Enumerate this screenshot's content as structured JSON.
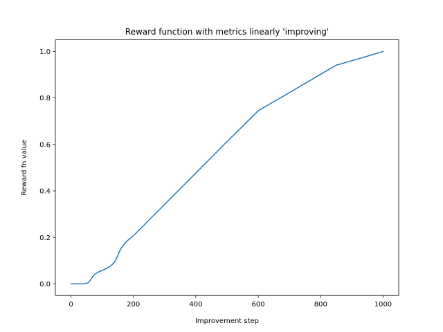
{
  "chart_data": {
    "type": "line",
    "title": "Reward function with metrics linearly 'improving'",
    "xlabel": "Improvement step",
    "ylabel": "Reward fn value",
    "xlim": [
      -50,
      1050
    ],
    "ylim": [
      -0.05,
      1.05
    ],
    "xticks": [
      0,
      200,
      400,
      600,
      800,
      1000
    ],
    "yticks": [
      0.0,
      0.2,
      0.4,
      0.6,
      0.8,
      1.0
    ],
    "xtick_labels": [
      "0",
      "200",
      "400",
      "600",
      "800",
      "1000"
    ],
    "ytick_labels": [
      "0.0",
      "0.2",
      "0.4",
      "0.6",
      "0.8",
      "1.0"
    ],
    "grid": false,
    "series": [
      {
        "color": "#1f77b4",
        "x": [
          0,
          20,
          40,
          50,
          55,
          60,
          65,
          70,
          75,
          80,
          90,
          100,
          110,
          120,
          130,
          140,
          145,
          150,
          155,
          160,
          165,
          170,
          180,
          200,
          300,
          400,
          500,
          600,
          700,
          800,
          850,
          900,
          950,
          1000
        ],
        "y": [
          0.0,
          0.0,
          0.0,
          0.002,
          0.005,
          0.012,
          0.022,
          0.032,
          0.04,
          0.045,
          0.052,
          0.058,
          0.064,
          0.071,
          0.08,
          0.095,
          0.108,
          0.122,
          0.138,
          0.152,
          0.162,
          0.17,
          0.185,
          0.207,
          0.342,
          0.477,
          0.612,
          0.745,
          0.823,
          0.902,
          0.941,
          0.96,
          0.98,
          1.0
        ]
      }
    ]
  }
}
